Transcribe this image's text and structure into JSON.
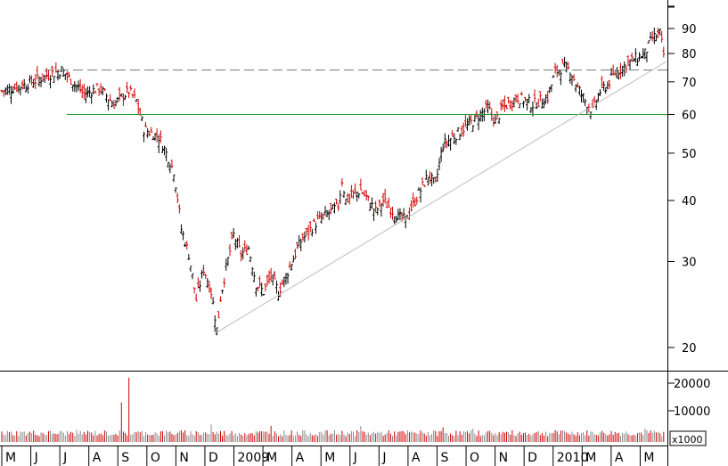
{
  "chart_data": [
    {
      "type": "candlestick",
      "scale": "log",
      "y_ticks": [
        20,
        30,
        40,
        50,
        60,
        70,
        80,
        90
      ],
      "ylim": [
        18.5,
        100
      ],
      "x_months": [
        "M",
        "J",
        "J",
        "A",
        "S",
        "O",
        "N",
        "D",
        "2009",
        "M",
        "A",
        "M",
        "J",
        "J",
        "A",
        "S",
        "O",
        "N",
        "D",
        "2010",
        "M",
        "A",
        "M"
      ],
      "close_path": [
        [
          0,
          67
        ],
        [
          3,
          69
        ],
        [
          6,
          72
        ],
        [
          8,
          74
        ],
        [
          11,
          66
        ],
        [
          13,
          68
        ],
        [
          15,
          63
        ],
        [
          17,
          67
        ],
        [
          18,
          64
        ],
        [
          19,
          56
        ],
        [
          20,
          55
        ],
        [
          21,
          54
        ],
        [
          22,
          50
        ],
        [
          23,
          46
        ],
        [
          24,
          35
        ],
        [
          25,
          31
        ],
        [
          26,
          25
        ],
        [
          27,
          29
        ],
        [
          28,
          26
        ],
        [
          28.8,
          21.5
        ],
        [
          29.2,
          25
        ],
        [
          30,
          29
        ],
        [
          31,
          34
        ],
        [
          32,
          31
        ],
        [
          33,
          32
        ],
        [
          34,
          27
        ],
        [
          35,
          26
        ],
        [
          36,
          28
        ],
        [
          37,
          26
        ],
        [
          38,
          28
        ],
        [
          40,
          33
        ],
        [
          42,
          36
        ],
        [
          44,
          38
        ],
        [
          45,
          39
        ],
        [
          45.5,
          44
        ],
        [
          46,
          40
        ],
        [
          48,
          42
        ],
        [
          50,
          38
        ],
        [
          51,
          40
        ],
        [
          53,
          37
        ],
        [
          54,
          36.5
        ],
        [
          56,
          42
        ],
        [
          57,
          45
        ],
        [
          58,
          43
        ],
        [
          59,
          52
        ],
        [
          61,
          55
        ],
        [
          63,
          58
        ],
        [
          65,
          62
        ],
        [
          66,
          58
        ],
        [
          67,
          62
        ],
        [
          69,
          65
        ],
        [
          71,
          63
        ],
        [
          73,
          65
        ],
        [
          74,
          73
        ],
        [
          75,
          75
        ],
        [
          76,
          74
        ],
        [
          77,
          68
        ],
        [
          78,
          64
        ],
        [
          79,
          61
        ],
        [
          80,
          67
        ],
        [
          81,
          69
        ],
        [
          82,
          73
        ],
        [
          84,
          77
        ],
        [
          86,
          80
        ],
        [
          87,
          86
        ],
        [
          88,
          88
        ],
        [
          88.6,
          78
        ]
      ],
      "volume_ticks": [
        10000,
        20000
      ],
      "volume_unit": "x1000",
      "volume_spikes": [
        [
          16,
          13000
        ],
        [
          17,
          22000
        ],
        [
          28,
          5000
        ],
        [
          36,
          4500
        ],
        [
          48,
          4500
        ],
        [
          59,
          4000
        ],
        [
          63,
          3500
        ],
        [
          74,
          3000
        ],
        [
          86,
          3500
        ]
      ],
      "reference_lines": [
        {
          "kind": "horizontal",
          "value": 74,
          "style": "dashed",
          "color": "#777777"
        },
        {
          "kind": "horizontal",
          "value": 60,
          "style": "solid",
          "color": "#2e9a2e"
        },
        {
          "kind": "trendline",
          "from": [
            28.8,
            21.5
          ],
          "to": [
            88.6,
            77
          ],
          "color": "#bbbbbb"
        }
      ]
    }
  ]
}
